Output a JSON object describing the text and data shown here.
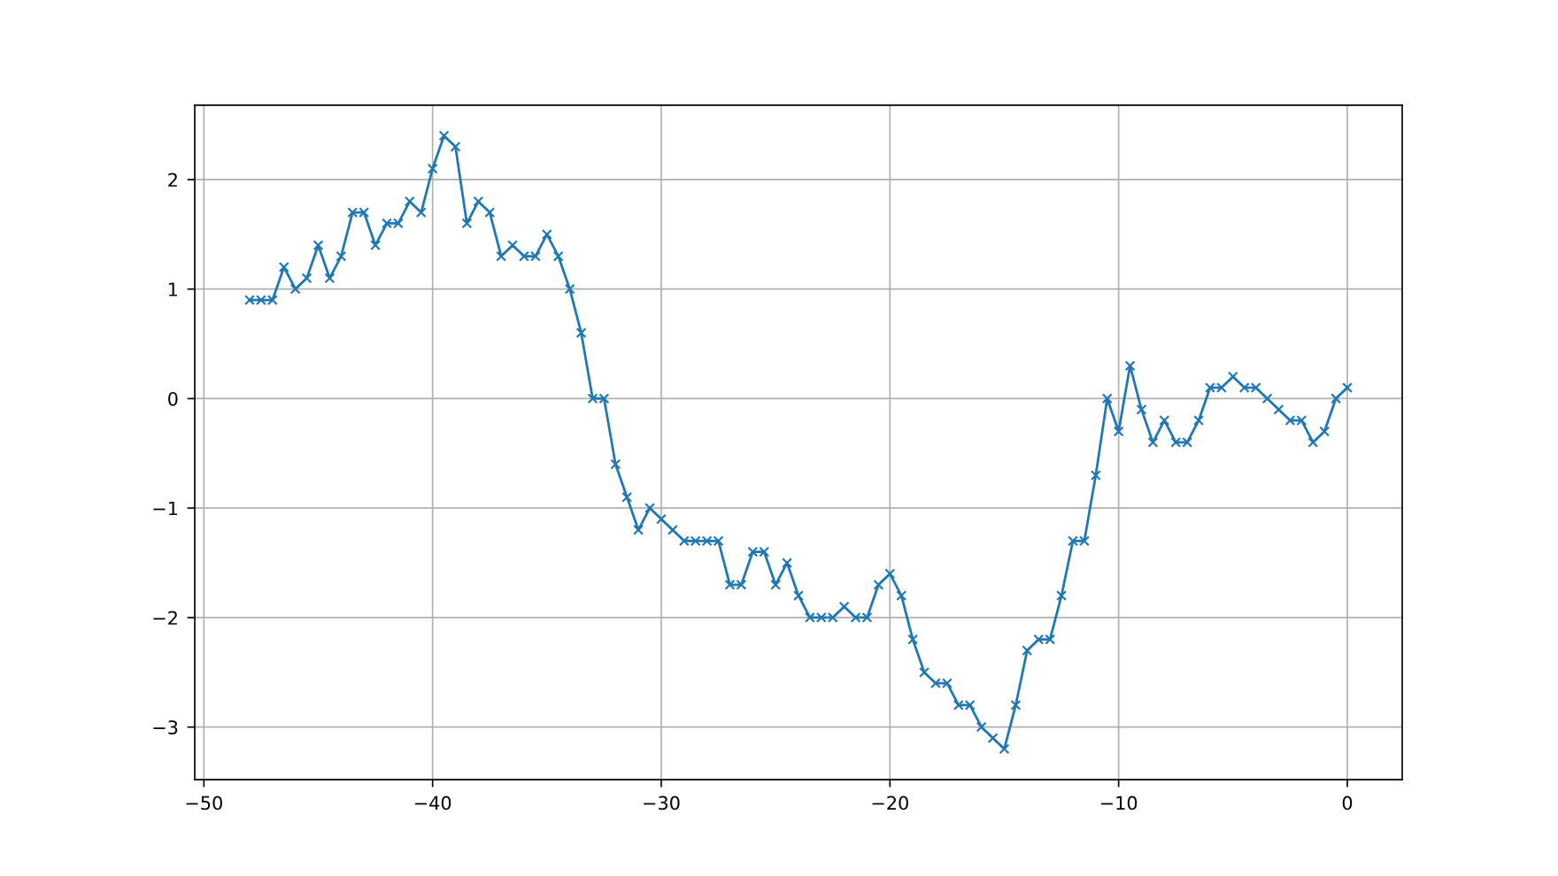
{
  "chart_data": {
    "type": "line",
    "x": [
      -48,
      -47.5,
      -47,
      -46.5,
      -46,
      -45.5,
      -45,
      -44.5,
      -44,
      -43.5,
      -43,
      -42.5,
      -42,
      -41.5,
      -41,
      -40.5,
      -40,
      -39.5,
      -39,
      -38.5,
      -38,
      -37.5,
      -37,
      -36.5,
      -36,
      -35.5,
      -35,
      -34.5,
      -34,
      -33.5,
      -33,
      -32.5,
      -32,
      -31.5,
      -31,
      -30.5,
      -30,
      -29.5,
      -29,
      -28.5,
      -28,
      -27.5,
      -27,
      -26.5,
      -26,
      -25.5,
      -25,
      -24.5,
      -24,
      -23.5,
      -23,
      -22.5,
      -22,
      -21.5,
      -21,
      -20.5,
      -20,
      -19.5,
      -19,
      -18.5,
      -18,
      -17.5,
      -17,
      -16.5,
      -16,
      -15.5,
      -15,
      -14.5,
      -14,
      -13.5,
      -13,
      -12.5,
      -12,
      -11.5,
      -11,
      -10.5,
      -10,
      -9.5,
      -9,
      -8.5,
      -8,
      -7.5,
      -7,
      -6.5,
      -6,
      -5.5,
      -5,
      -4.5,
      -4,
      -3.5,
      -3,
      -2.5,
      -2,
      -1.5,
      -1,
      -0.5,
      0
    ],
    "series": [
      {
        "color": "#1f77b4",
        "values": [
          0.9,
          0.9,
          0.9,
          1.2,
          1.0,
          1.1,
          1.4,
          1.1,
          1.3,
          1.7,
          1.7,
          1.4,
          1.6,
          1.6,
          1.8,
          1.7,
          2.1,
          2.4,
          2.3,
          1.6,
          1.8,
          1.7,
          1.3,
          1.4,
          1.3,
          1.3,
          1.5,
          1.3,
          1.0,
          0.6,
          0.0,
          0.0,
          -0.6,
          -0.9,
          -1.2,
          -1.0,
          -1.1,
          -1.2,
          -1.3,
          -1.3,
          -1.3,
          -1.3,
          -1.7,
          -1.7,
          -1.4,
          -1.4,
          -1.7,
          -1.5,
          -1.8,
          -2.0,
          -2.0,
          -2.0,
          -1.9,
          -2.0,
          -2.0,
          -1.7,
          -1.6,
          -1.8,
          -2.2,
          -2.5,
          -2.6,
          -2.6,
          -2.8,
          -2.8,
          -3.0,
          -3.1,
          -3.2,
          -2.8,
          -2.3,
          -2.2,
          -2.2,
          -1.8,
          -1.3,
          -1.3,
          -0.7,
          0.0,
          -0.3,
          0.3,
          -0.1,
          -0.4,
          -0.2,
          -0.4,
          -0.4,
          -0.2,
          0.1,
          0.1,
          0.2,
          0.1,
          0.1,
          0.0,
          -0.1,
          -0.2,
          -0.2,
          -0.4,
          -0.3,
          0.0,
          0.1
        ]
      }
    ],
    "xlim": [
      -50.4,
      2.4
    ],
    "ylim": [
      -3.48,
      2.68
    ],
    "xticks": [
      {
        "value": -50,
        "label": "−50"
      },
      {
        "value": -40,
        "label": "−40"
      },
      {
        "value": -30,
        "label": "−30"
      },
      {
        "value": -20,
        "label": "−20"
      },
      {
        "value": -10,
        "label": "−10"
      },
      0
    ],
    "yticks": [
      {
        "value": -3,
        "label": "−3"
      },
      {
        "value": -2,
        "label": "−2"
      },
      {
        "value": -1,
        "label": "−1"
      },
      0,
      1,
      2
    ],
    "grid": true,
    "marker": "cross",
    "line_style": "solid"
  }
}
